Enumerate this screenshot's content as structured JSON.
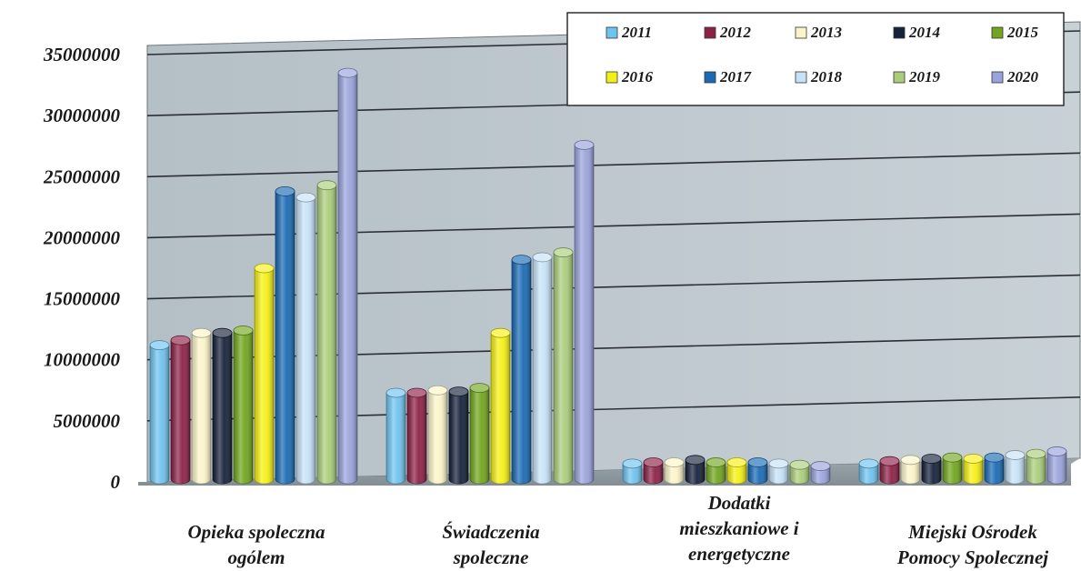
{
  "chart_data": {
    "type": "bar",
    "title": "",
    "xlabel": "",
    "ylabel": "",
    "ylim": [
      0,
      35000000
    ],
    "y_ticks": [
      "0",
      "5000000",
      "10000000",
      "15000000",
      "20000000",
      "25000000",
      "30000000",
      "35000000"
    ],
    "grid": true,
    "legend_position": "top-right",
    "categories": [
      [
        "Opieka spoleczna",
        "ogólem"
      ],
      [
        "Świadczenia",
        "spoleczne"
      ],
      [
        "Dodatki",
        "mieszkaniowe i",
        "energetyczne"
      ],
      [
        "Miejski Ośrodek",
        "Pomocy Spolecznej"
      ]
    ],
    "series": [
      {
        "name": "2011",
        "color": "#6fc3ef",
        "values": [
          11200000,
          7300000,
          1500000,
          1500000
        ]
      },
      {
        "name": "2012",
        "color": "#8c2146",
        "values": [
          11600000,
          7300000,
          1600000,
          1700000
        ]
      },
      {
        "name": "2013",
        "color": "#fbf4c8",
        "values": [
          12200000,
          7500000,
          1600000,
          1800000
        ]
      },
      {
        "name": "2014",
        "color": "#16213a",
        "values": [
          12200000,
          7400000,
          1800000,
          1900000
        ]
      },
      {
        "name": "2015",
        "color": "#71a51e",
        "values": [
          12400000,
          7700000,
          1600000,
          2000000
        ]
      },
      {
        "name": "2016",
        "color": "#f5f013",
        "values": [
          17500000,
          12200000,
          1600000,
          1900000
        ]
      },
      {
        "name": "2017",
        "color": "#1a6ab4",
        "values": [
          23800000,
          18200000,
          1600000,
          2000000
        ]
      },
      {
        "name": "2018",
        "color": "#c6e2f6",
        "values": [
          23300000,
          18400000,
          1500000,
          2200000
        ]
      },
      {
        "name": "2019",
        "color": "#aacd7b",
        "values": [
          24300000,
          18800000,
          1400000,
          2300000
        ]
      },
      {
        "name": "2020",
        "color": "#9aa3dc",
        "values": [
          33500000,
          27600000,
          1300000,
          2500000
        ]
      }
    ]
  }
}
